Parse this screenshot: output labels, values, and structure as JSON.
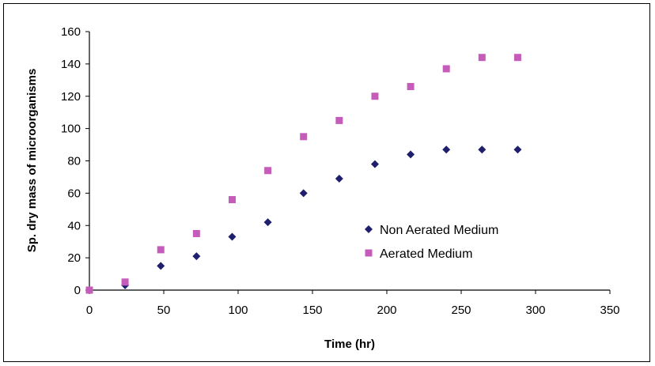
{
  "chart_data": {
    "type": "scatter",
    "title": "",
    "xlabel": "Time (hr)",
    "ylabel": "Sp. dry mass of microorganisms",
    "xlim": [
      0,
      350
    ],
    "ylim": [
      0,
      160
    ],
    "xticks": [
      0,
      50,
      100,
      150,
      200,
      250,
      300,
      350
    ],
    "yticks": [
      0,
      20,
      40,
      60,
      80,
      100,
      120,
      140,
      160
    ],
    "grid": false,
    "legend_position": "center-right",
    "series": [
      {
        "name": "Non Aerated Medium",
        "marker": "diamond",
        "color": "#1f1f6e",
        "x": [
          0,
          24,
          48,
          72,
          96,
          120,
          144,
          168,
          192,
          216,
          240,
          264,
          288
        ],
        "y": [
          0,
          3,
          15,
          21,
          33,
          42,
          60,
          69,
          78,
          84,
          87,
          87,
          87
        ]
      },
      {
        "name": "Aerated Medium",
        "marker": "square",
        "color": "#c65cba",
        "x": [
          0,
          24,
          48,
          72,
          96,
          120,
          144,
          168,
          192,
          216,
          240,
          264,
          288
        ],
        "y": [
          0,
          5,
          25,
          35,
          56,
          74,
          95,
          105,
          120,
          126,
          137,
          144,
          144
        ]
      }
    ]
  }
}
